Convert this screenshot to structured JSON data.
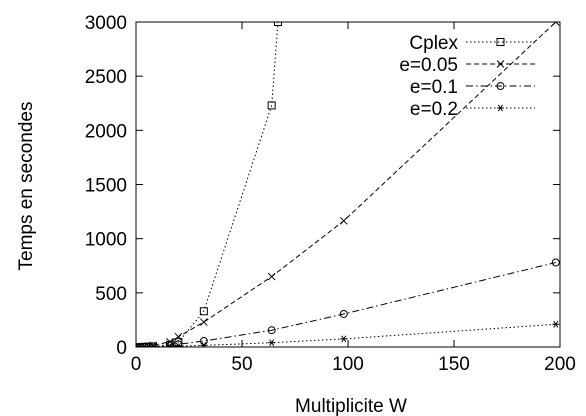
{
  "chart_data": {
    "type": "line",
    "xlabel": "Multiplicite W",
    "ylabel": "Temps en secondes",
    "xlim": [
      0,
      200
    ],
    "ylim": [
      0,
      3000
    ],
    "xticks": [
      0,
      50,
      100,
      150,
      200
    ],
    "yticks": [
      0,
      500,
      1000,
      1500,
      2000,
      2500,
      3000
    ],
    "grid": false,
    "legend_position": "top-right",
    "series": [
      {
        "name": "Cplex",
        "marker": "square",
        "dash": "dotted",
        "x": [
          1,
          2,
          4,
          6,
          8,
          16,
          20,
          32,
          64,
          67
        ],
        "y": [
          0,
          0,
          1,
          2,
          5,
          20,
          45,
          330,
          2230,
          3000
        ]
      },
      {
        "name": "e=0.05",
        "marker": "x",
        "dash": "dashed",
        "x": [
          1,
          2,
          4,
          6,
          8,
          16,
          20,
          32,
          64,
          98,
          198
        ],
        "y": [
          1,
          2,
          5,
          9,
          15,
          48,
          95,
          230,
          650,
          1165,
          3000
        ]
      },
      {
        "name": "e=0.1",
        "marker": "circle",
        "dash": "dashdot",
        "x": [
          1,
          2,
          4,
          6,
          8,
          16,
          20,
          32,
          64,
          98,
          198
        ],
        "y": [
          0,
          1,
          2,
          4,
          6,
          14,
          25,
          55,
          155,
          305,
          780
        ]
      },
      {
        "name": "e=0.2",
        "marker": "asterisk",
        "dash": "dotted",
        "x": [
          1,
          2,
          4,
          6,
          8,
          16,
          20,
          32,
          64,
          98,
          198
        ],
        "y": [
          0,
          0,
          1,
          1,
          2,
          4,
          8,
          15,
          40,
          75,
          210
        ]
      }
    ]
  }
}
